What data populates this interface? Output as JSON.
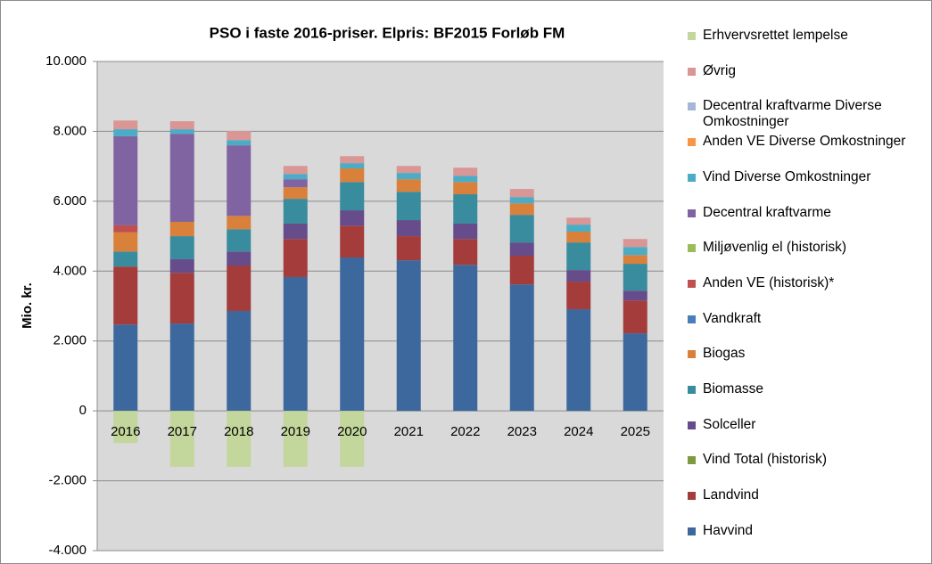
{
  "chart_data": {
    "type": "stacked_bar",
    "title": "PSO i faste 2016-priser. Elpris: BF2015 Forløb FM",
    "y_label": "Mio. kr.",
    "categories": [
      "2016",
      "2017",
      "2018",
      "2019",
      "2020",
      "2021",
      "2022",
      "2023",
      "2024",
      "2025"
    ],
    "ylim": [
      -4000,
      10000
    ],
    "yticks": [
      {
        "value": -4000,
        "label": "-4.000"
      },
      {
        "value": -2000,
        "label": "-2.000"
      },
      0,
      {
        "value": 2000,
        "label": "2.000"
      },
      {
        "value": 4000,
        "label": "4.000"
      },
      {
        "value": 6000,
        "label": "6.000"
      },
      {
        "value": 8000,
        "label": "8.000"
      },
      {
        "value": 10000,
        "label": "10.000"
      }
    ],
    "grid": true,
    "series": [
      {
        "name": "Havvind",
        "color": "#3d689d",
        "values": [
          2470,
          2500,
          2860,
          3830,
          4390,
          4310,
          4180,
          3620,
          2910,
          2220
        ]
      },
      {
        "name": "Landvind",
        "color": "#a33c3a",
        "values": [
          1660,
          1450,
          1300,
          1090,
          910,
          690,
          740,
          820,
          790,
          940
        ]
      },
      {
        "name": "Vind Total (historisk)",
        "color": "#7e9a3e",
        "values": [
          0,
          0,
          0,
          0,
          0,
          0,
          0,
          0,
          0,
          0
        ]
      },
      {
        "name": "Solceller",
        "color": "#664c8a",
        "values": [
          0,
          390,
          400,
          440,
          440,
          460,
          440,
          380,
          330,
          280
        ]
      },
      {
        "name": "Biomasse",
        "color": "#398b9e",
        "values": [
          430,
          660,
          640,
          710,
          810,
          810,
          840,
          790,
          790,
          770
        ]
      },
      {
        "name": "Biogas",
        "color": "#d9803a",
        "values": [
          550,
          410,
          380,
          330,
          390,
          360,
          350,
          330,
          310,
          250
        ]
      },
      {
        "name": "Vandkraft",
        "color": "#4a7ebb",
        "values": [
          0,
          0,
          0,
          0,
          0,
          0,
          0,
          0,
          0,
          0
        ]
      },
      {
        "name": "Anden VE (historisk)*",
        "color": "#c0504d",
        "values": [
          200,
          0,
          0,
          0,
          0,
          0,
          0,
          0,
          0,
          0
        ]
      },
      {
        "name": "Miljøvenlig el (historisk)",
        "color": "#9bbb59",
        "values": [
          0,
          0,
          0,
          0,
          0,
          0,
          0,
          0,
          0,
          0
        ]
      },
      {
        "name": "Decentral kraftvarme",
        "color": "#8064a2",
        "values": [
          2550,
          2520,
          2020,
          230,
          0,
          0,
          0,
          0,
          0,
          0
        ]
      },
      {
        "name": "Vind Diverse Omkostninger",
        "color": "#4bacc6",
        "values": [
          200,
          130,
          150,
          150,
          150,
          180,
          180,
          180,
          200,
          230
        ]
      },
      {
        "name": "Anden VE Diverse Omkostninger",
        "color": "#f79646",
        "values": [
          0,
          0,
          0,
          0,
          0,
          0,
          0,
          0,
          0,
          0
        ]
      },
      {
        "name": "Decentral kraftvarme Diverse Omkostninger",
        "color": "#a5b6d9",
        "values": [
          0,
          0,
          0,
          0,
          0,
          0,
          0,
          0,
          0,
          0
        ]
      },
      {
        "name": "Øvrig",
        "color": "#d99694",
        "values": [
          250,
          230,
          260,
          230,
          200,
          200,
          230,
          230,
          200,
          230
        ]
      },
      {
        "name": "Erhvervsrettet lempelse",
        "color": "#c3d69b",
        "values": [
          -920,
          -1600,
          -1600,
          -1600,
          -1600,
          0,
          0,
          0,
          0,
          0
        ]
      }
    ]
  }
}
